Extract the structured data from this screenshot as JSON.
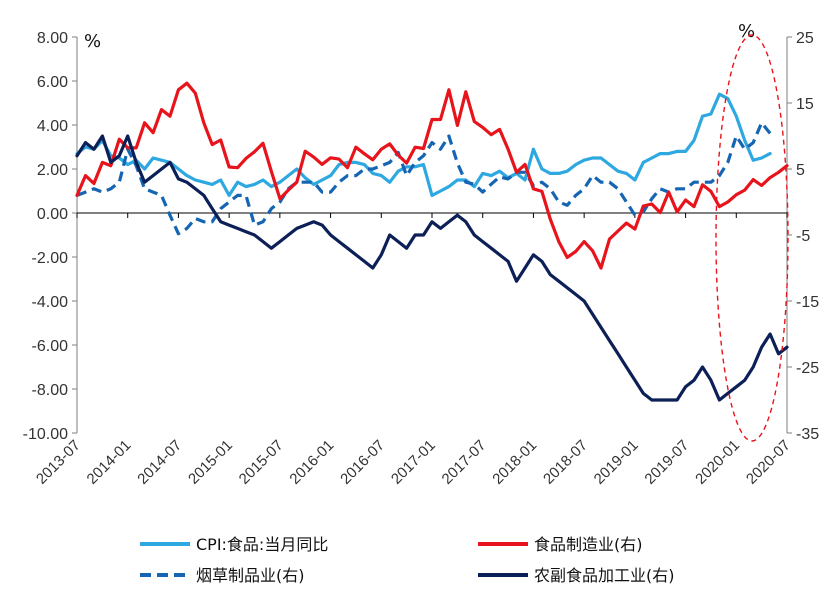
{
  "chart_data": {
    "type": "line",
    "left_axis": {
      "unit": "%",
      "min": -10,
      "max": 8,
      "ticks": [
        "8.00",
        "6.00",
        "4.00",
        "2.00",
        "0.00",
        "-2.00",
        "-4.00",
        "-6.00",
        "-8.00",
        "-10.00"
      ]
    },
    "right_axis": {
      "unit": "%",
      "min": -35,
      "max": 25,
      "ticks": [
        "25",
        "15",
        "5",
        "-5",
        "-15",
        "-25",
        "-35"
      ]
    },
    "x_ticks": [
      "2013-07",
      "2014-01",
      "2014-07",
      "2015-01",
      "2015-07",
      "2016-01",
      "2016-07",
      "2017-01",
      "2017-07",
      "2018-01",
      "2018-07",
      "2019-01",
      "2019-07",
      "2020-01",
      "2020-07"
    ],
    "x_start": "2013-07",
    "series": [
      {
        "name": "CPI:食品:当月同比",
        "axis": "left",
        "color": "#2ea8e0",
        "dash": "solid",
        "values": [
          2.7,
          3.0,
          2.9,
          3.3,
          2.6,
          2.5,
          2.2,
          2.4,
          2.0,
          2.5,
          2.4,
          2.3,
          2.0,
          1.7,
          1.5,
          1.4,
          1.3,
          1.5,
          0.8,
          1.4,
          1.2,
          1.3,
          1.5,
          1.2,
          1.4,
          1.7,
          2.0,
          1.6,
          1.3,
          1.5,
          1.7,
          2.2,
          2.3,
          2.3,
          2.2,
          1.8,
          1.7,
          1.4,
          1.9,
          2.1,
          2.1,
          2.2,
          0.8,
          1.0,
          1.2,
          1.5,
          1.5,
          1.2,
          1.8,
          1.7,
          1.9,
          1.6,
          1.8,
          1.5,
          2.9,
          2.0,
          1.8,
          1.8,
          1.9,
          2.2,
          2.4,
          2.5,
          2.5,
          2.2,
          1.9,
          1.8,
          1.5,
          2.3,
          2.5,
          2.7,
          2.7,
          2.8,
          2.8,
          3.3,
          4.4,
          4.5,
          5.4,
          5.2,
          4.4,
          3.3,
          2.4,
          2.5,
          2.7
        ]
      },
      {
        "name": "食品制造业(右)",
        "axis": "right",
        "color": "#e8141c",
        "dash": "solid",
        "values": [
          1,
          4,
          2.8,
          6,
          5.5,
          9.5,
          8.2,
          8.2,
          12,
          10.5,
          14,
          13,
          17,
          18,
          16.5,
          12,
          8.7,
          9.4,
          5.3,
          5.2,
          6.6,
          7.6,
          8.9,
          4.6,
          0.5,
          1.8,
          3,
          7.7,
          6.8,
          5.7,
          6.7,
          6.5,
          5.2,
          8.3,
          7.3,
          6.4,
          8,
          8.8,
          7.1,
          5.9,
          8.3,
          8.1,
          12.5,
          12.5,
          17,
          11.6,
          16.7,
          12.2,
          11.3,
          10.2,
          11,
          8,
          4.5,
          5.7,
          2,
          1.6,
          -2.6,
          -6,
          -8.4,
          -7.5,
          -6,
          -7.4,
          -10,
          -5.6,
          -4.4,
          -3.2,
          -4.1,
          -0.6,
          -0.3,
          -1.6,
          1.5,
          -1.5,
          0.3,
          -0.7,
          2.6,
          1.6,
          -0.7,
          0,
          1.1,
          1.8,
          3.4,
          2.5,
          3.7,
          4.5,
          5.5
        ]
      },
      {
        "name": "烟草制品业(右)",
        "axis": "right",
        "color": "#1565b3",
        "dash": "dash",
        "values": [
          1,
          1.5,
          2,
          1.5,
          2,
          3,
          8,
          5.5,
          2,
          1.5,
          1,
          -2,
          -4.8,
          -4,
          -2.5,
          -3,
          -3,
          -1,
          0,
          1,
          1,
          -3.5,
          -3,
          -1,
          0,
          2,
          3,
          3,
          3,
          1.5,
          1.5,
          3,
          4,
          4,
          5,
          5,
          5.5,
          6,
          7.5,
          4,
          6,
          7,
          9,
          8,
          10,
          5.9,
          3,
          2.7,
          1.5,
          2.7,
          3.8,
          3.5,
          4.5,
          4.5,
          2.5,
          3,
          2,
          0,
          -0.5,
          1,
          2,
          4,
          3,
          3,
          2,
          0,
          -2,
          -1.5,
          0.5,
          2,
          1.5,
          2,
          2,
          3,
          3,
          3,
          4,
          6,
          10,
          8,
          9,
          12,
          10.4
        ]
      },
      {
        "name": "农副食品加工业(右)",
        "axis": "right",
        "color": "#0c1f57",
        "dash": "solid",
        "values": [
          7,
          9,
          8,
          10,
          6,
          7,
          10,
          6,
          3,
          4,
          5,
          6,
          3.5,
          3,
          2,
          1,
          -1,
          -3,
          -3.5,
          -4,
          -4.5,
          -5,
          -6,
          -7,
          -6,
          -5,
          -4,
          -3.5,
          -3,
          -3.5,
          -5,
          -6,
          -7,
          -8,
          -9,
          -10,
          -8,
          -5,
          -6,
          -7,
          -5,
          -5,
          -3,
          -4,
          -3,
          -2,
          -3,
          -5,
          -6,
          -7,
          -8,
          -9,
          -12,
          -10,
          -8,
          -9,
          -11,
          -12,
          -13,
          -14,
          -15,
          -17,
          -19,
          -21,
          -23,
          -25,
          -27,
          -29,
          -30,
          -30,
          -30,
          -30,
          -28,
          -27,
          -25,
          -27,
          -30,
          -29,
          -28,
          -27,
          -25,
          -22,
          -20,
          -23,
          -22
        ]
      }
    ],
    "legend": [
      "CPI:食品:当月同比",
      "食品制造业(右)",
      "烟草制品业(右)",
      "农副食品加工业(右)"
    ],
    "annotation": {
      "type": "dashed-ellipse",
      "color": "#e8141c"
    }
  }
}
